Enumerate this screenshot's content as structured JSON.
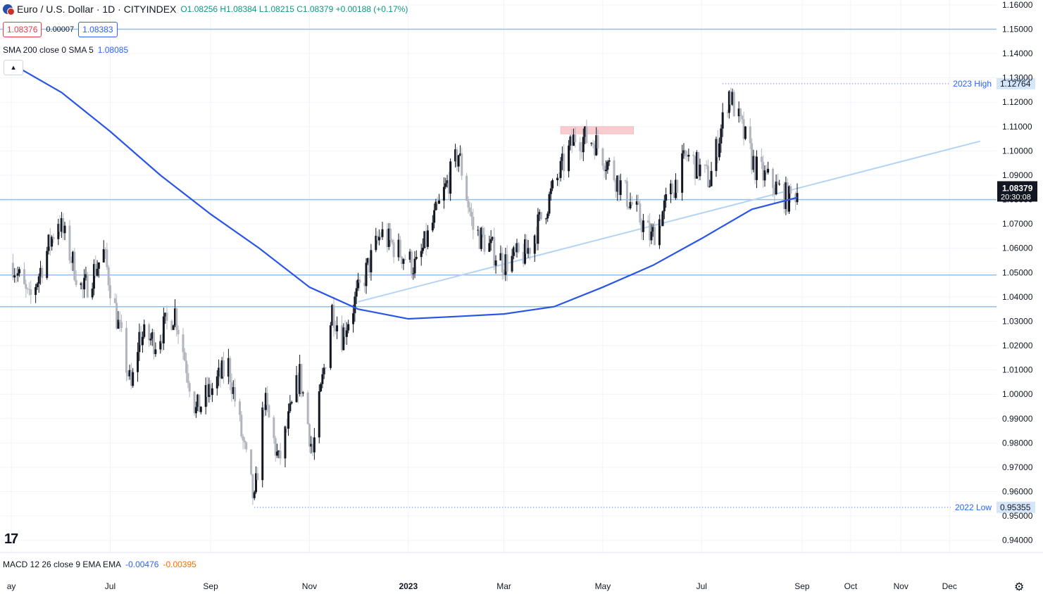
{
  "header": {
    "symbol": "Euro / U.S. Dollar · 1D · CITYINDEX",
    "ohlc": "O1.08256  H1.08384  L1.08215  C1.08379  +0.00188 (+0.17%)"
  },
  "quote": {
    "sell": "1.08376",
    "spread": "0.00007",
    "buy": "1.08383"
  },
  "sma": {
    "label": "SMA 200 close 0 SMA 5",
    "value": "1.08085"
  },
  "macd": {
    "label": "MACD 12 26 close 9 EMA EMA",
    "macd_value": "-0.00476",
    "signal_value": "-0.00395"
  },
  "colors": {
    "up": "#131722",
    "down": "#b2b5be",
    "sma": "#2a55e5",
    "levels": "#90bfea",
    "trend": "#b3d4f4",
    "zone": "#f7cdd0",
    "grid": "#f0f3fa",
    "last_price_bg": "#131722",
    "annotation": "#2962ff"
  },
  "chart_data": {
    "type": "candlestick",
    "instrument": "EUR/USD",
    "timeframe": "1D",
    "y_ticks": [
      "1.16000",
      "1.15000",
      "1.14000",
      "1.13000",
      "1.12000",
      "1.11000",
      "1.10000",
      "1.09000",
      "1.08000",
      "1.07000",
      "1.06000",
      "1.05000",
      "1.04000",
      "1.03000",
      "1.02000",
      "1.01000",
      "1.00000",
      "0.99000",
      "0.98000",
      "0.97000",
      "0.96000",
      "0.95000",
      "0.94000"
    ],
    "x_ticks": [
      {
        "label": "ay",
        "date": "2022-05-01"
      },
      {
        "label": "Jul",
        "date": "2022-07-01"
      },
      {
        "label": "Sep",
        "date": "2022-09-01"
      },
      {
        "label": "Nov",
        "date": "2022-11-01"
      },
      {
        "label": "2023",
        "date": "2023-01-01"
      },
      {
        "label": "Mar",
        "date": "2023-03-01"
      },
      {
        "label": "May",
        "date": "2023-05-01"
      },
      {
        "label": "Jul",
        "date": "2023-07-01"
      },
      {
        "label": "Sep",
        "date": "2023-09-01"
      },
      {
        "label": "Oct",
        "date": "2023-10-01"
      },
      {
        "label": "Nov",
        "date": "2023-11-01"
      },
      {
        "label": "Dec",
        "date": "2023-12-01"
      }
    ],
    "price_path": [
      {
        "date": "2022-05-02",
        "close": 1.054
      },
      {
        "date": "2022-05-12",
        "close": 1.038
      },
      {
        "date": "2022-05-30",
        "close": 1.072
      },
      {
        "date": "2022-06-14",
        "close": 1.042
      },
      {
        "date": "2022-06-27",
        "close": 1.058
      },
      {
        "date": "2022-07-14",
        "close": 1.002
      },
      {
        "date": "2022-07-19",
        "close": 1.024
      },
      {
        "date": "2022-07-29",
        "close": 1.022
      },
      {
        "date": "2022-08-10",
        "close": 1.034
      },
      {
        "date": "2022-08-23",
        "close": 0.993
      },
      {
        "date": "2022-09-12",
        "close": 1.012
      },
      {
        "date": "2022-09-28",
        "close": 0.955
      },
      {
        "date": "2022-10-04",
        "close": 0.998
      },
      {
        "date": "2022-10-13",
        "close": 0.972
      },
      {
        "date": "2022-10-26",
        "close": 1.008
      },
      {
        "date": "2022-11-03",
        "close": 0.976
      },
      {
        "date": "2022-11-15",
        "close": 1.035
      },
      {
        "date": "2022-11-21",
        "close": 1.024
      },
      {
        "date": "2022-12-15",
        "close": 1.066
      },
      {
        "date": "2023-01-06",
        "close": 1.052
      },
      {
        "date": "2023-02-01",
        "close": 1.099
      },
      {
        "date": "2023-02-10",
        "close": 1.068
      },
      {
        "date": "2023-03-01",
        "close": 1.054
      },
      {
        "date": "2023-03-15",
        "close": 1.058
      },
      {
        "date": "2023-04-14",
        "close": 1.106
      },
      {
        "date": "2023-04-26",
        "close": 1.104
      },
      {
        "date": "2023-05-31",
        "close": 1.064
      },
      {
        "date": "2023-06-22",
        "close": 1.098
      },
      {
        "date": "2023-07-06",
        "close": 1.088
      },
      {
        "date": "2023-07-18",
        "close": 1.124
      },
      {
        "date": "2023-08-03",
        "close": 1.093
      },
      {
        "date": "2023-08-24",
        "close": 1.08
      },
      {
        "date": "2023-08-29",
        "close": 1.08379
      }
    ],
    "series": [
      {
        "name": "SMA 200",
        "values": [
          {
            "date": "2022-04-28",
            "value": 1.137
          },
          {
            "date": "2022-06-01",
            "value": 1.124
          },
          {
            "date": "2022-07-01",
            "value": 1.108
          },
          {
            "date": "2022-08-01",
            "value": 1.09
          },
          {
            "date": "2022-09-01",
            "value": 1.074
          },
          {
            "date": "2022-10-01",
            "value": 1.06
          },
          {
            "date": "2022-11-01",
            "value": 1.044
          },
          {
            "date": "2022-12-01",
            "value": 1.035
          },
          {
            "date": "2023-01-01",
            "value": 1.031
          },
          {
            "date": "2023-02-01",
            "value": 1.032
          },
          {
            "date": "2023-03-01",
            "value": 1.033
          },
          {
            "date": "2023-04-01",
            "value": 1.036
          },
          {
            "date": "2023-05-01",
            "value": 1.044
          },
          {
            "date": "2023-06-01",
            "value": 1.053
          },
          {
            "date": "2023-07-01",
            "value": 1.064
          },
          {
            "date": "2023-08-01",
            "value": 1.076
          },
          {
            "date": "2023-08-29",
            "value": 1.08085
          }
        ]
      }
    ],
    "horizontal_levels": [
      1.15,
      1.08,
      1.049,
      1.036
    ],
    "trendline": [
      {
        "date": "2022-12-01",
        "value": 1.038
      },
      {
        "date": "2023-12-20",
        "value": 1.104
      }
    ],
    "resistance_zone": {
      "from": "2023-04-05",
      "to": "2023-05-20",
      "low": 1.107,
      "high": 1.11
    },
    "annotations": [
      {
        "label": "2023 High",
        "value": "1.12764"
      },
      {
        "label": "2022 Low",
        "value": "0.95355"
      }
    ],
    "last_price": {
      "value": "1.08379",
      "countdown": "20:30:08"
    },
    "ylim": [
      0.935,
      1.162
    ],
    "grid": true
  }
}
